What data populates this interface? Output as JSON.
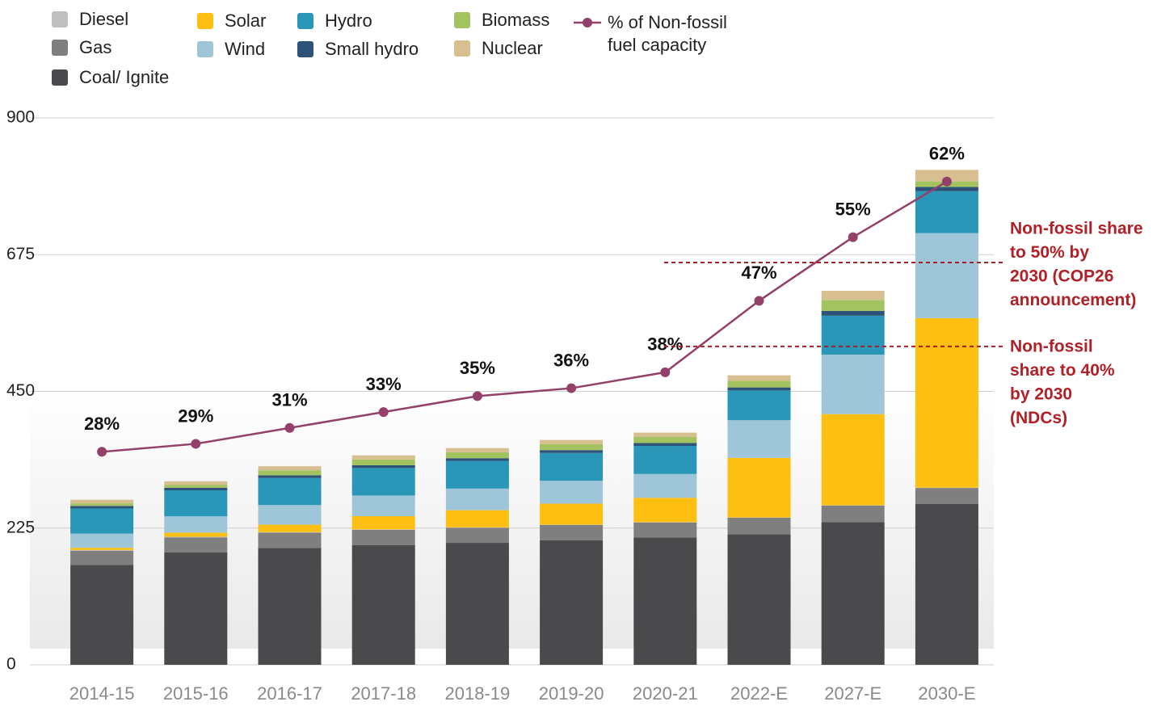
{
  "chart_data": {
    "type": "stacked_bar_line",
    "categories": [
      "2014-15",
      "2015-16",
      "2016-17",
      "2017-18",
      "2018-19",
      "2019-20",
      "2020-21",
      "2022-E",
      "2027-E",
      "2030-E"
    ],
    "ylim": [
      0,
      900
    ],
    "yticks": [
      0,
      225,
      450,
      675,
      900
    ],
    "y2lim": [
      1.2,
      70
    ],
    "grid": true,
    "series": [
      {
        "name": "Coal/ Ignite",
        "color": "#4a4a4c",
        "values": [
          164.6,
          185.2,
          192.2,
          197.2,
          200.7,
          205.1,
          209.3,
          215,
          235,
          265
        ]
      },
      {
        "name": "Gas",
        "color": "#7f7f7f",
        "values": [
          23.1,
          24.5,
          25.3,
          24.9,
          24.9,
          25,
          24.9,
          27,
          27,
          26
        ]
      },
      {
        "name": "Diesel",
        "color": "#bfbfbf",
        "values": [
          1.2,
          1,
          0.8,
          0.8,
          0.6,
          0.5,
          0.5,
          0.5,
          0.5,
          0.5
        ]
      },
      {
        "name": "Solar",
        "color": "#fdbf12",
        "values": [
          3.7,
          6.8,
          12.3,
          21.7,
          28.2,
          34.6,
          40.1,
          98,
          150,
          279
        ]
      },
      {
        "name": "Wind",
        "color": "#9ec5d8",
        "values": [
          23.4,
          26.8,
          32.3,
          34,
          35.6,
          37.7,
          39.2,
          62,
          98,
          140
        ]
      },
      {
        "name": "Hydro",
        "color": "#2a97b8",
        "values": [
          41.3,
          42.8,
          44.5,
          45.3,
          45.4,
          45.7,
          46.2,
          49,
          64,
          69
        ]
      },
      {
        "name": "Small hydro",
        "color": "#2d5478",
        "values": [
          4.1,
          4.3,
          4.4,
          4.5,
          4.6,
          4.7,
          4.8,
          5,
          8,
          7
        ]
      },
      {
        "name": "Biomass",
        "color": "#a3c361",
        "values": [
          4.4,
          4.9,
          8.3,
          9.5,
          9.8,
          10,
          10.3,
          11,
          18,
          9
        ]
      },
      {
        "name": "Nuclear",
        "color": "#d8bf92",
        "values": [
          5.8,
          5.8,
          6.8,
          6.8,
          6.8,
          6.8,
          6.8,
          9,
          15,
          19
        ]
      },
      {
        "name": "% of Non-fossil fuel capacity",
        "color": "#93416a",
        "axis": "y2",
        "type": "line",
        "values": [
          28,
          29,
          31,
          33,
          35,
          36,
          38,
          47,
          55,
          62
        ],
        "value_labels": [
          "28%",
          "29%",
          "31%",
          "33%",
          "35%",
          "36%",
          "38%",
          "47%",
          "55%",
          "62%"
        ]
      }
    ],
    "annotations": [
      {
        "lines": [
          "Non-fossil share",
          "to 50% by",
          "2030 (COP26",
          "announcement)"
        ],
        "y": 662
      },
      {
        "lines": [
          "Non-fossil",
          "share to 40%",
          "by 2030",
          "(NDCs)"
        ],
        "y": 524
      }
    ]
  }
}
